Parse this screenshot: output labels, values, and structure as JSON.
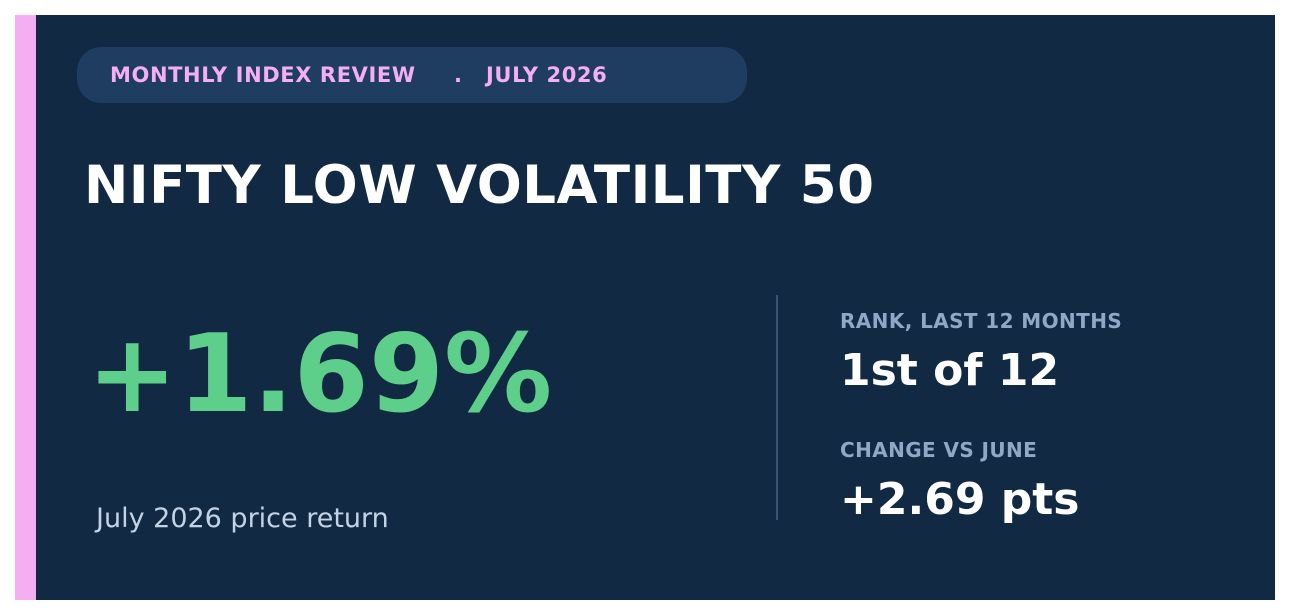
{
  "header": {
    "label": "MONTHLY INDEX REVIEW",
    "separator": ".",
    "period": "JULY 2026"
  },
  "index_name": "NIFTY LOW VOLATILITY 50",
  "headline": {
    "value": "+1.69%",
    "caption": "July 2026 price return"
  },
  "stats": [
    {
      "label": "RANK, LAST 12 MONTHS",
      "value": "1st of 12"
    },
    {
      "label": "CHANGE VS JUNE",
      "value": "+2.69 pts"
    }
  ],
  "colors": {
    "background": "#112942",
    "accent": "#f6aef2",
    "pill": "#1e3d60",
    "positive": "#5ecf8a",
    "label": "#8ea8c6"
  }
}
